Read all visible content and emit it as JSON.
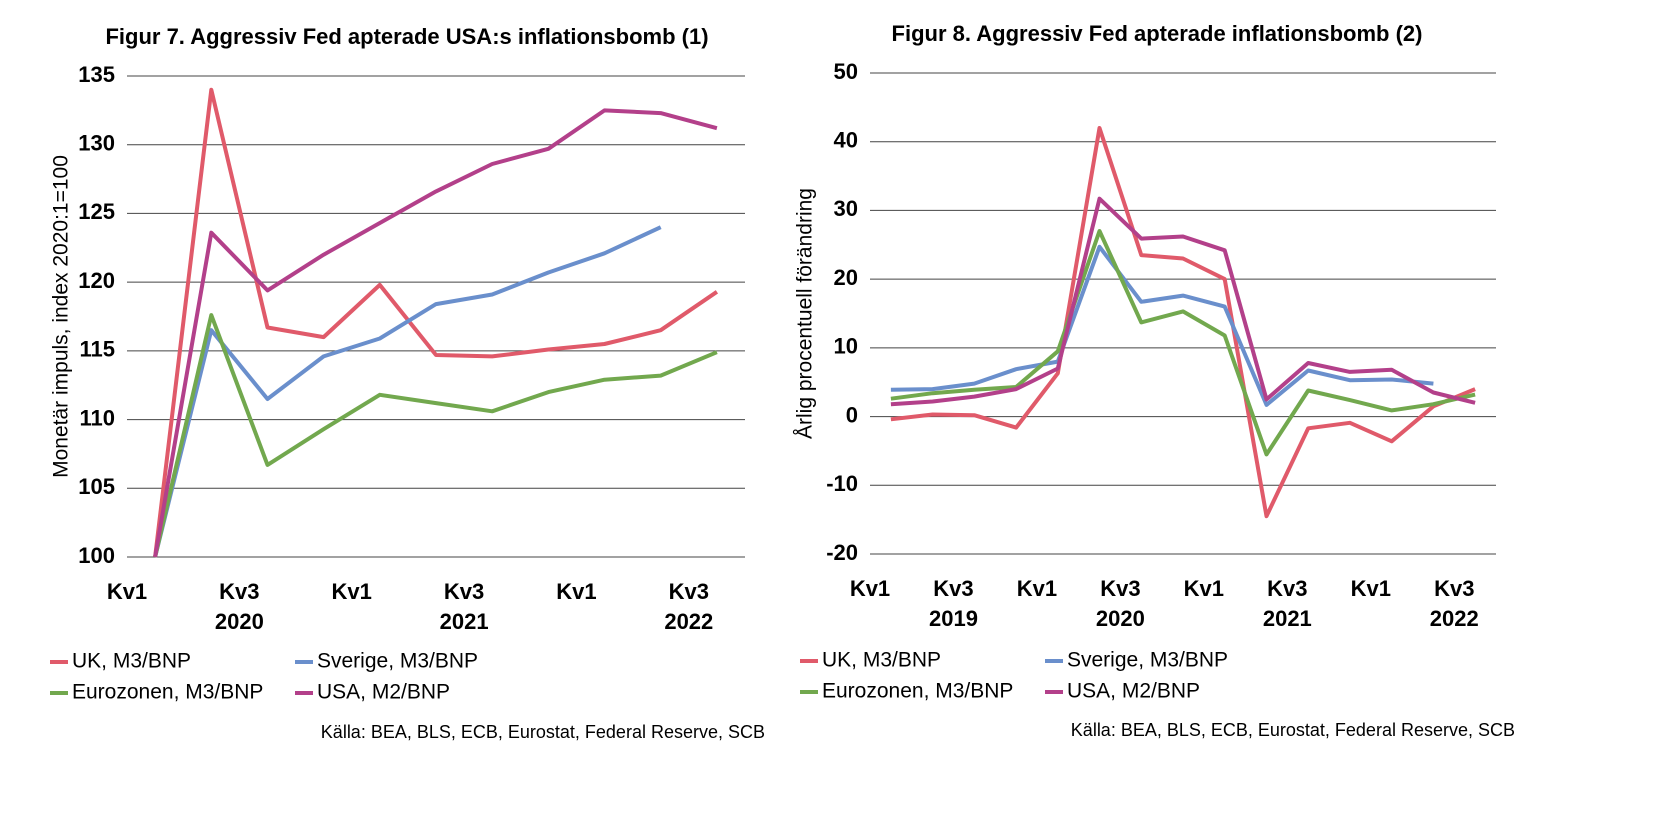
{
  "chart_data": [
    {
      "type": "line",
      "title": "Figur 7. Aggressiv Fed apterade USA:s inflationsbomb (1)",
      "ylabel": "Monetär impuls, index 2020:1=100",
      "categories": [
        "Kv1",
        null,
        "Kv3",
        null,
        "Kv1",
        null,
        "Kv3",
        null,
        "Kv1",
        null,
        "Kv3"
      ],
      "year_labels": [
        "2020",
        "2021",
        "2022"
      ],
      "ylim": [
        100,
        135
      ],
      "yticks": [
        100,
        105,
        110,
        115,
        120,
        125,
        130,
        135
      ],
      "grid": true,
      "legend": "bottom",
      "series": [
        {
          "name": "UK, M3/BNP",
          "color": "#e05a6a",
          "values": [
            100,
            134,
            116.7,
            116,
            119.8,
            114.7,
            114.6,
            115.1,
            115.5,
            116.5,
            119.3
          ]
        },
        {
          "name": "Sverige, M3/BNP",
          "color": "#6a8fcc",
          "values": [
            100,
            116.5,
            111.5,
            114.6,
            115.9,
            118.4,
            119.1,
            120.7,
            122.1,
            124.0,
            null
          ]
        },
        {
          "name": "Eurozonen, M3/BNP",
          "color": "#72a84e",
          "values": [
            100,
            117.6,
            106.7,
            109.3,
            111.8,
            111.2,
            110.6,
            112.0,
            112.9,
            113.2,
            114.9
          ]
        },
        {
          "name": "USA, M2/BNP",
          "color": "#b3408a",
          "values": [
            100,
            123.6,
            119.4,
            122.0,
            124.3,
            126.6,
            128.6,
            129.7,
            132.5,
            132.3,
            131.2
          ]
        }
      ],
      "source": "Källa: BEA, BLS, ECB, Eurostat, Federal Reserve, SCB"
    },
    {
      "type": "line",
      "title": "Figur 8. Aggressiv Fed apterade inflationsbomb (2)",
      "ylabel": "Årlig procentuell förändring",
      "categories": [
        "Kv1",
        null,
        "Kv3",
        null,
        "Kv1",
        null,
        "Kv3",
        null,
        "Kv1",
        null,
        "Kv3",
        null,
        "Kv1",
        null,
        "Kv3"
      ],
      "year_labels": [
        "2019",
        "2020",
        "2021",
        "2022"
      ],
      "ylim": [
        -20,
        50
      ],
      "yticks": [
        -20,
        -10,
        0,
        10,
        20,
        30,
        40,
        50
      ],
      "grid": true,
      "legend": "bottom",
      "series": [
        {
          "name": "UK, M3/BNP",
          "color": "#e05a6a",
          "values": [
            -0.4,
            0.3,
            0.2,
            -1.6,
            6.3,
            42,
            23.5,
            23,
            20,
            -14.5,
            -1.7,
            -0.9,
            -3.6,
            1.5,
            4
          ]
        },
        {
          "name": "Sverige, M3/BNP",
          "color": "#6a8fcc",
          "values": [
            3.9,
            4,
            4.8,
            6.9,
            8,
            24.7,
            16.7,
            17.6,
            16,
            1.7,
            6.7,
            5.3,
            5.4,
            4.8,
            null
          ]
        },
        {
          "name": "Eurozonen, M3/BNP",
          "color": "#72a84e",
          "values": [
            2.6,
            3.4,
            3.9,
            4.3,
            9.5,
            27,
            13.7,
            15.3,
            11.8,
            -5.5,
            3.8,
            2.4,
            0.9,
            1.8,
            3.2
          ]
        },
        {
          "name": "USA, M2/BNP",
          "color": "#b3408a",
          "values": [
            1.8,
            2.2,
            2.9,
            4,
            7,
            31.7,
            25.9,
            26.2,
            24.2,
            2.5,
            7.8,
            6.5,
            6.8,
            3.5,
            2.0
          ]
        }
      ],
      "source": "Källa: BEA, BLS, ECB, Eurostat, Federal Reserve, SCB"
    }
  ]
}
